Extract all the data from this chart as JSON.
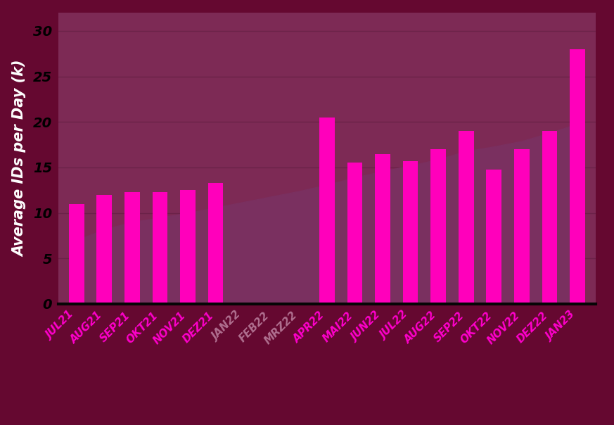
{
  "categories": [
    "JUL21",
    "AUG21",
    "SEP21",
    "OKT21",
    "NOV21",
    "DEZ21",
    "JAN22",
    "FEB22",
    "MRZ22",
    "APR22",
    "MAI22",
    "JUN22",
    "JUL22",
    "AUG22",
    "SEP22",
    "OKT22",
    "NOV22",
    "DEZ22",
    "JAN23"
  ],
  "bar_values": [
    11.0,
    12.0,
    12.3,
    12.3,
    12.5,
    13.3,
    null,
    null,
    null,
    20.5,
    15.5,
    16.5,
    15.7,
    17.0,
    19.0,
    14.8,
    17.0,
    19.0,
    28.0
  ],
  "trend_x": [
    0,
    1,
    2,
    3,
    4,
    5,
    6,
    7,
    8,
    9,
    10,
    11,
    12,
    13,
    14,
    15,
    16,
    17,
    18
  ],
  "trend_y": [
    7.0,
    8.2,
    9.0,
    9.5,
    10.0,
    10.6,
    11.2,
    11.8,
    12.4,
    13.1,
    13.9,
    14.6,
    15.2,
    15.9,
    16.8,
    17.3,
    17.9,
    18.8,
    19.8
  ],
  "bar_color": "#FF00BB",
  "trend_fill_color": "#7A3060",
  "trend_fill_alpha": 1.0,
  "background_outer": "#650830",
  "background_chart": "#7D2A55",
  "gridline_color": "#6B2248",
  "axis_line_color": "#050505",
  "ylabel": "Average IDs per Day (k)",
  "yticks": [
    0,
    5,
    10,
    15,
    20,
    25,
    30
  ],
  "ylim": [
    0,
    32
  ],
  "xlabel_color_normal": "#FF00CC",
  "xlabel_color_faded": "#B07090",
  "faded_indices": [
    6,
    7,
    8
  ],
  "tick_fontsize": 14,
  "ylabel_fontsize": 15,
  "bar_width": 0.55
}
